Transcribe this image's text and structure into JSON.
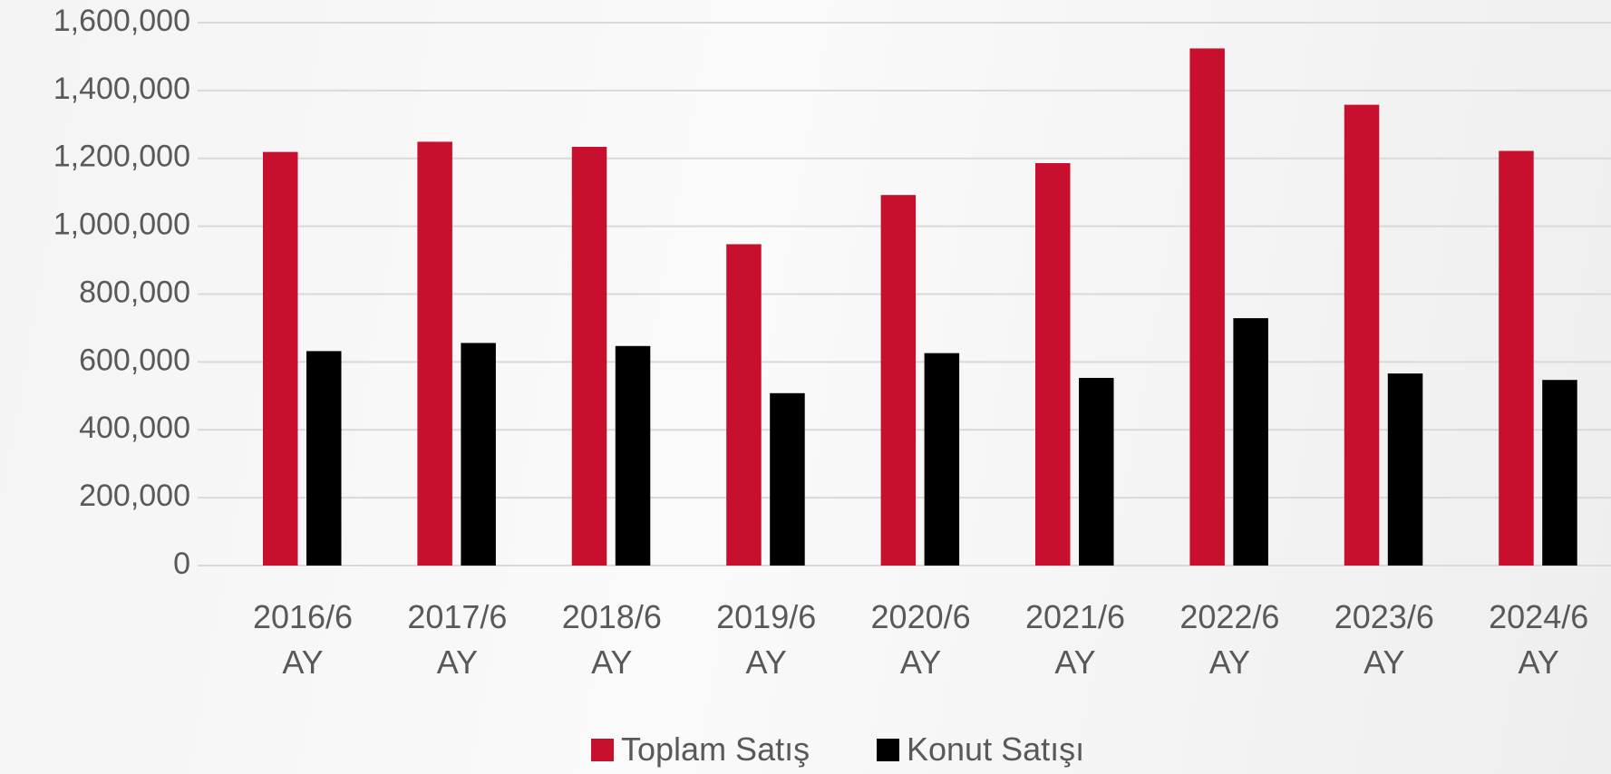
{
  "chart_data": {
    "type": "bar",
    "categories": [
      "2016/6 AY",
      "2017/6 AY",
      "2018/6 AY",
      "2019/6 AY",
      "2020/6 AY",
      "2021/6 AY",
      "2022/6 AY",
      "2023/6 AY",
      "2024/6 AY"
    ],
    "series": [
      {
        "name": "Toplam Satış",
        "color": "#c8102e",
        "values": [
          1219000,
          1249000,
          1234000,
          947000,
          1092000,
          1186000,
          1524000,
          1358000,
          1222000
        ]
      },
      {
        "name": "Konut Satışı",
        "color": "#000000",
        "values": [
          632000,
          656000,
          647000,
          508000,
          626000,
          553000,
          729000,
          566000,
          547000
        ]
      }
    ],
    "ylim": [
      0,
      1600000
    ],
    "yticks": [
      0,
      {
        "value": 200000,
        "label": "200,000"
      },
      {
        "value": 400000,
        "label": "400,000"
      },
      {
        "value": 600000,
        "label": "600,000"
      },
      {
        "value": 800000,
        "label": "800,000"
      },
      {
        "value": 1000000,
        "label": "1,000,000"
      },
      {
        "value": 1200000,
        "label": "1,200,000"
      },
      {
        "value": 1400000,
        "label": "1,400,000"
      },
      {
        "value": 1600000,
        "label": "1,600,000"
      }
    ],
    "grid": true,
    "legend": "bottom"
  }
}
